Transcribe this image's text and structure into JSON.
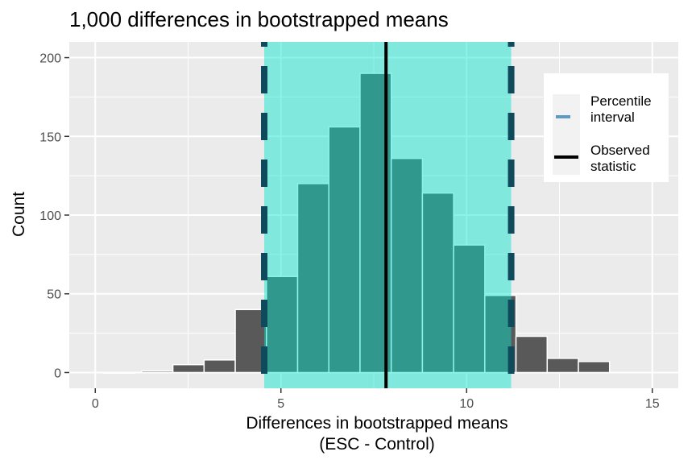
{
  "chart_data": {
    "type": "bar",
    "title": "1,000 differences in bootstrapped means",
    "xlabel_line1": "Differences in bootstrapped means",
    "xlabel_line2": "(ESC - Control)",
    "ylabel": "Count",
    "xlim": [
      -0.7,
      15.7
    ],
    "ylim": [
      -10,
      210
    ],
    "x_ticks": [
      0,
      5,
      10,
      15
    ],
    "y_ticks": [
      0,
      50,
      100,
      150,
      200
    ],
    "bin_width": 0.84,
    "bins": [
      {
        "center": 0.63,
        "count": 0
      },
      {
        "center": 1.67,
        "count": 1
      },
      {
        "center": 2.51,
        "count": 5
      },
      {
        "center": 3.35,
        "count": 8
      },
      {
        "center": 4.19,
        "count": 40
      },
      {
        "center": 5.03,
        "count": 61
      },
      {
        "center": 5.87,
        "count": 120
      },
      {
        "center": 6.71,
        "count": 156
      },
      {
        "center": 7.55,
        "count": 190
      },
      {
        "center": 8.39,
        "count": 136
      },
      {
        "center": 9.23,
        "count": 114
      },
      {
        "center": 10.07,
        "count": 81
      },
      {
        "center": 10.91,
        "count": 49
      },
      {
        "center": 11.75,
        "count": 23
      },
      {
        "center": 12.59,
        "count": 9
      },
      {
        "center": 13.43,
        "count": 7
      }
    ],
    "percentile_interval": [
      4.55,
      11.2
    ],
    "observed_statistic": 7.83,
    "legend": {
      "position": "right",
      "items": [
        {
          "label_line1": "Percentile",
          "label_line2": "interval",
          "kind": "dashed",
          "color": "#5b9bc6"
        },
        {
          "label_line1": "Observed",
          "label_line2": "statistic",
          "kind": "solid",
          "color": "#000000"
        }
      ]
    },
    "colors": {
      "panel": "#ebebeb",
      "grid": "#ffffff",
      "bar_fill": "#595959",
      "bar_edge": "#ffffff",
      "shade": "#00e5cc",
      "dashed_line": "#0e4a5c",
      "observed_line": "#000000"
    },
    "grid": true
  }
}
